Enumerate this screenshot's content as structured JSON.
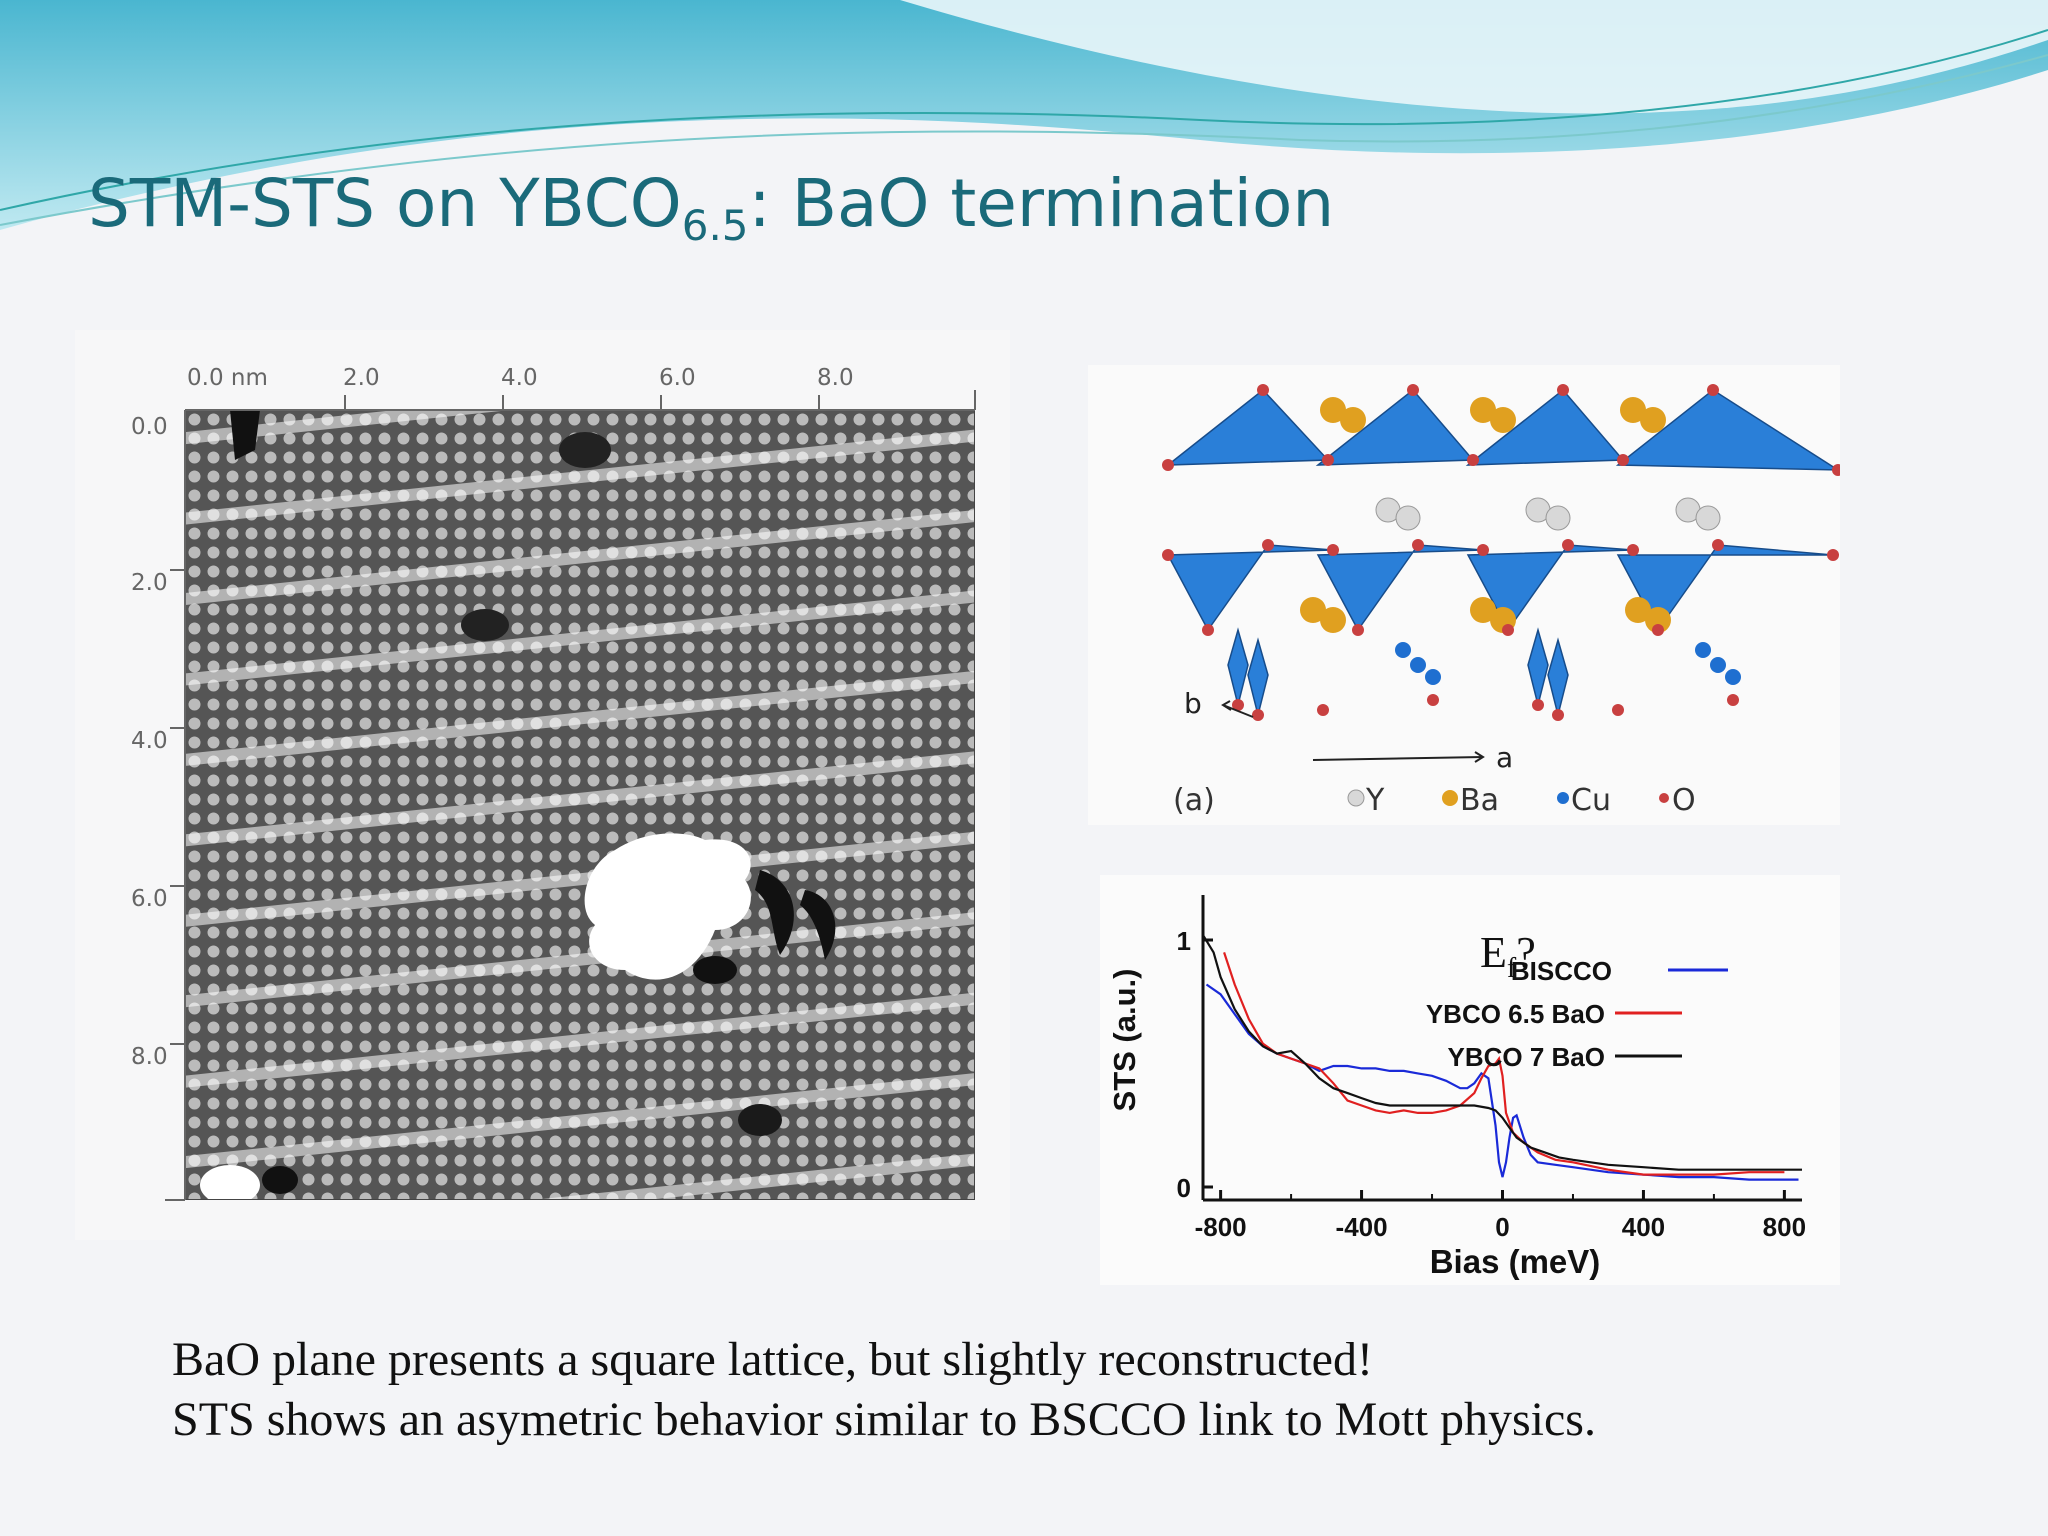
{
  "slide": {
    "title_main": "STM-STS on YBCO",
    "title_sub": "6.5",
    "title_rest": ": BaO termination",
    "caption_line1": "BaO plane presents a square lattice, but slightly reconstructed!",
    "caption_line2": "STS shows an asymetric behavior  similar to BSCCO link to Mott physics."
  },
  "stm_image": {
    "x_ticks": [
      "0.0 nm",
      "2.0",
      "4.0",
      "6.0",
      "8.0"
    ],
    "y_ticks": [
      "0.0",
      "2.0",
      "4.0",
      "6.0",
      "8.0"
    ]
  },
  "crystal": {
    "panel_label": "(a)",
    "axis_b": "b",
    "axis_a": "a",
    "legend": [
      "Y",
      "Ba",
      "Cu",
      "O"
    ],
    "colors": {
      "Y": "#d8d8d8",
      "Ba": "#e0a020",
      "Cu": "#1f6fd0",
      "O": "#c84040",
      "polyhedra": "#2a7fd8"
    }
  },
  "chart_data": {
    "type": "line",
    "title": "",
    "xlabel": "Bias (meV)",
    "ylabel": "STS (a.u.)",
    "xlim": [
      -850,
      850
    ],
    "ylim": [
      0,
      1
    ],
    "x_ticks": [
      "-800",
      "-400",
      "0",
      "400",
      "800"
    ],
    "y_ticks": [
      "0",
      "1"
    ],
    "annotation": "E",
    "annotation_sub": "f",
    "annotation_suffix": "?",
    "legend_position": "top-right",
    "series": [
      {
        "name": "BISCCO",
        "color": "#1a2ad8",
        "x": [
          -840,
          -800,
          -760,
          -720,
          -680,
          -640,
          -600,
          -560,
          -520,
          -480,
          -440,
          -400,
          -360,
          -320,
          -280,
          -240,
          -200,
          -160,
          -120,
          -100,
          -80,
          -60,
          -40,
          -20,
          -10,
          0,
          10,
          20,
          30,
          40,
          60,
          80,
          100,
          150,
          200,
          300,
          400,
          500,
          600,
          700,
          800,
          840
        ],
        "y": [
          0.82,
          0.78,
          0.7,
          0.62,
          0.57,
          0.54,
          0.52,
          0.5,
          0.47,
          0.49,
          0.49,
          0.48,
          0.48,
          0.47,
          0.47,
          0.46,
          0.45,
          0.43,
          0.4,
          0.4,
          0.42,
          0.46,
          0.44,
          0.25,
          0.1,
          0.04,
          0.1,
          0.2,
          0.28,
          0.29,
          0.2,
          0.13,
          0.1,
          0.09,
          0.08,
          0.06,
          0.05,
          0.04,
          0.04,
          0.03,
          0.03,
          0.03
        ]
      },
      {
        "name": "YBCO 6.5 BaO",
        "color": "#e02020",
        "x": [
          -790,
          -760,
          -720,
          -680,
          -640,
          -600,
          -560,
          -520,
          -480,
          -440,
          -400,
          -360,
          -320,
          -280,
          -240,
          -200,
          -160,
          -120,
          -80,
          -60,
          -40,
          -20,
          -10,
          0,
          10,
          30,
          60,
          100,
          150,
          200,
          300,
          400,
          500,
          600,
          700,
          800
        ],
        "y": [
          0.95,
          0.82,
          0.68,
          0.58,
          0.54,
          0.52,
          0.5,
          0.48,
          0.42,
          0.35,
          0.33,
          0.31,
          0.3,
          0.31,
          0.3,
          0.3,
          0.31,
          0.33,
          0.38,
          0.44,
          0.49,
          0.5,
          0.52,
          0.45,
          0.3,
          0.22,
          0.18,
          0.14,
          0.11,
          0.1,
          0.07,
          0.05,
          0.05,
          0.05,
          0.06,
          0.06
        ]
      },
      {
        "name": "YBCO 7 BaO",
        "color": "#111111",
        "x": [
          -850,
          -820,
          -800,
          -760,
          -720,
          -680,
          -640,
          -600,
          -560,
          -520,
          -480,
          -440,
          -400,
          -360,
          -320,
          -280,
          -240,
          -200,
          -160,
          -120,
          -80,
          -40,
          -20,
          0,
          20,
          40,
          80,
          120,
          160,
          200,
          300,
          400,
          500,
          600,
          700,
          800,
          850
        ],
        "y": [
          1.02,
          0.95,
          0.85,
          0.72,
          0.63,
          0.57,
          0.54,
          0.55,
          0.5,
          0.44,
          0.4,
          0.38,
          0.36,
          0.34,
          0.33,
          0.33,
          0.33,
          0.33,
          0.33,
          0.33,
          0.33,
          0.32,
          0.31,
          0.28,
          0.24,
          0.2,
          0.16,
          0.14,
          0.12,
          0.11,
          0.09,
          0.08,
          0.07,
          0.07,
          0.07,
          0.07,
          0.07
        ]
      }
    ]
  }
}
